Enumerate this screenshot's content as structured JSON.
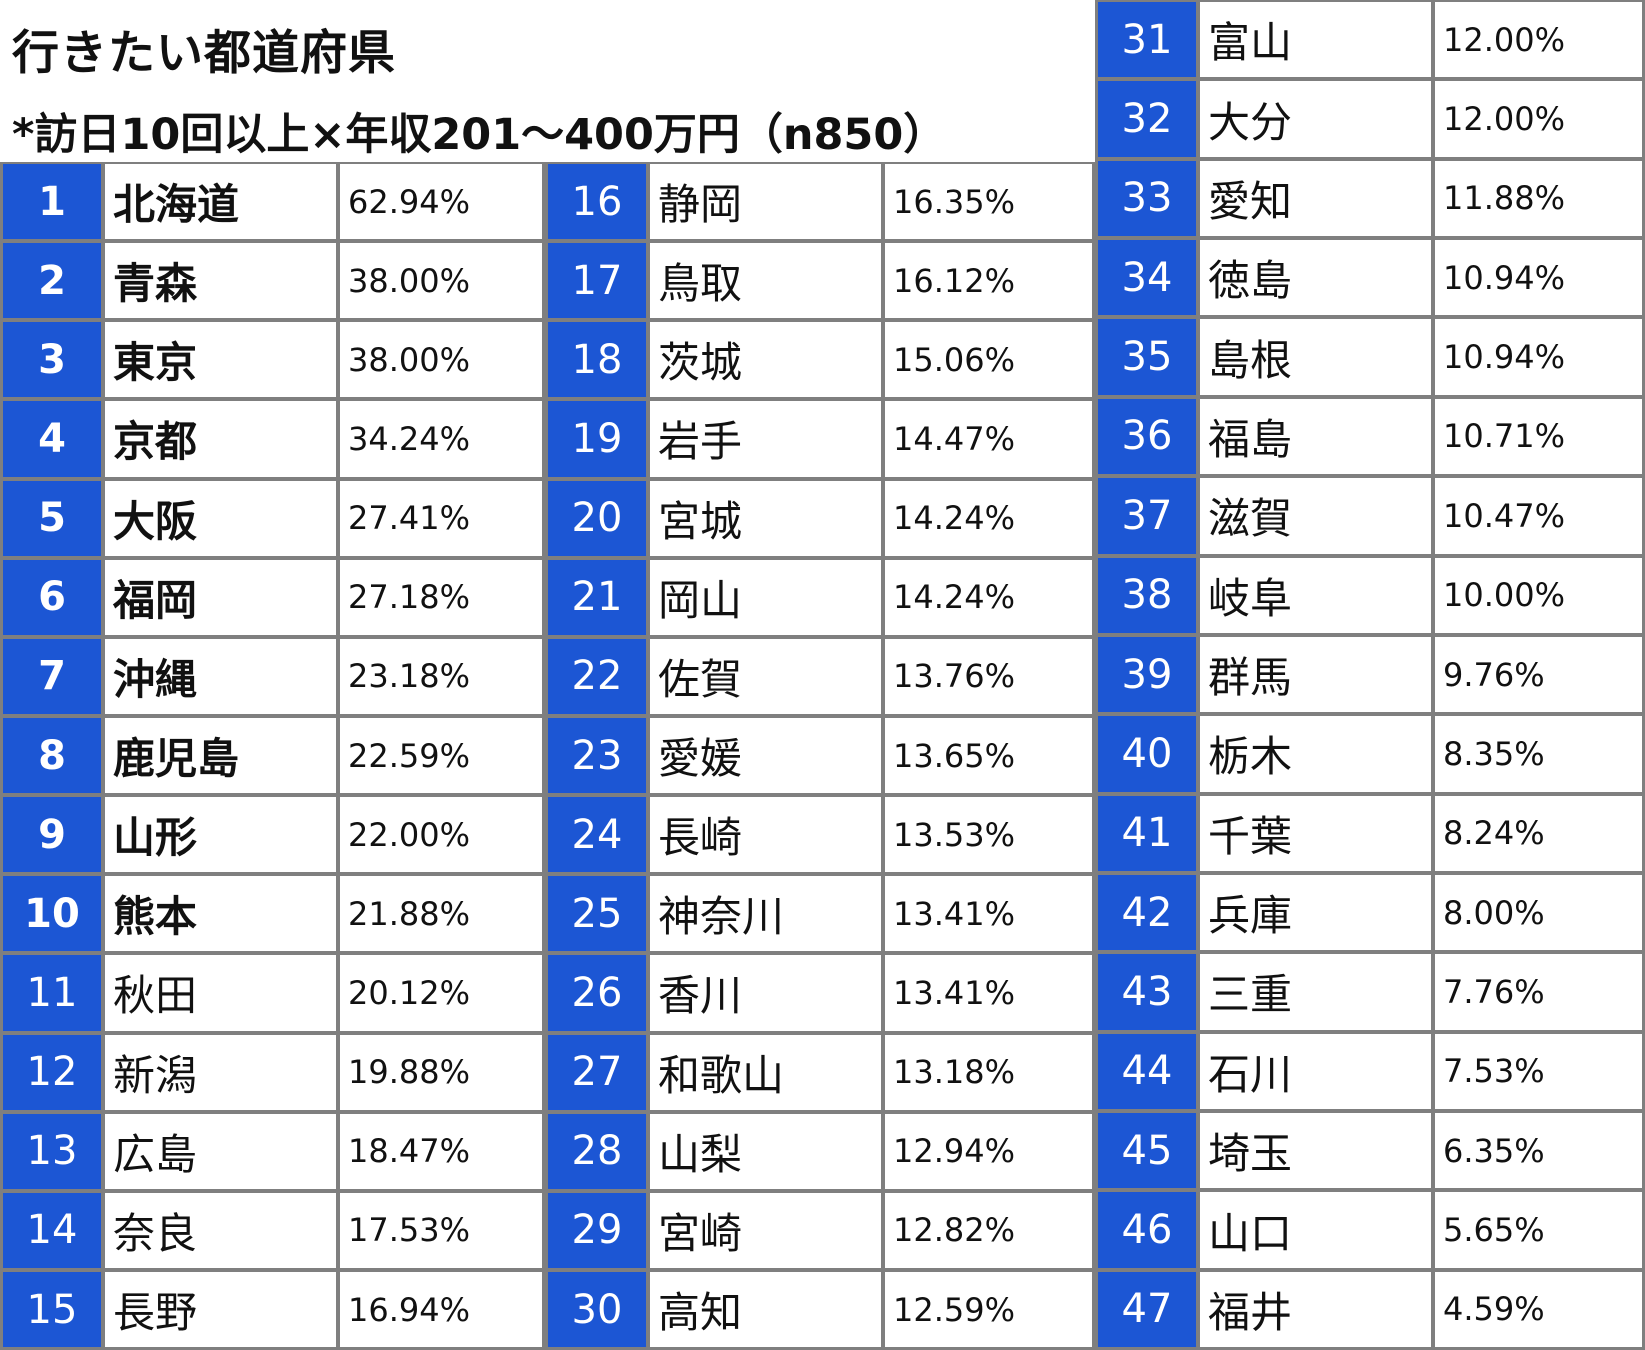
{
  "title": "行きたい都道府県",
  "subtitle": "*訪日10回以上×年収201～400万円（n850）",
  "columns": [
    [
      {
        "rank": "1",
        "name": "北海道",
        "pct": "62.94%",
        "bold": true
      },
      {
        "rank": "2",
        "name": "青森",
        "pct": "38.00%",
        "bold": true
      },
      {
        "rank": "3",
        "name": "東京",
        "pct": "38.00%",
        "bold": true
      },
      {
        "rank": "4",
        "name": "京都",
        "pct": "34.24%",
        "bold": true
      },
      {
        "rank": "5",
        "name": "大阪",
        "pct": "27.41%",
        "bold": true
      },
      {
        "rank": "6",
        "name": "福岡",
        "pct": "27.18%",
        "bold": true
      },
      {
        "rank": "7",
        "name": "沖縄",
        "pct": "23.18%",
        "bold": true
      },
      {
        "rank": "8",
        "name": "鹿児島",
        "pct": "22.59%",
        "bold": true
      },
      {
        "rank": "9",
        "name": "山形",
        "pct": "22.00%",
        "bold": true
      },
      {
        "rank": "10",
        "name": "熊本",
        "pct": "21.88%",
        "bold": true
      },
      {
        "rank": "11",
        "name": "秋田",
        "pct": "20.12%",
        "bold": false
      },
      {
        "rank": "12",
        "name": "新潟",
        "pct": "19.88%",
        "bold": false
      },
      {
        "rank": "13",
        "name": "広島",
        "pct": "18.47%",
        "bold": false
      },
      {
        "rank": "14",
        "name": "奈良",
        "pct": "17.53%",
        "bold": false
      },
      {
        "rank": "15",
        "name": "長野",
        "pct": "16.94%",
        "bold": false
      }
    ],
    [
      {
        "rank": "16",
        "name": "静岡",
        "pct": "16.35%",
        "bold": false
      },
      {
        "rank": "17",
        "name": "鳥取",
        "pct": "16.12%",
        "bold": false
      },
      {
        "rank": "18",
        "name": "茨城",
        "pct": "15.06%",
        "bold": false
      },
      {
        "rank": "19",
        "name": "岩手",
        "pct": "14.47%",
        "bold": false
      },
      {
        "rank": "20",
        "name": "宮城",
        "pct": "14.24%",
        "bold": false
      },
      {
        "rank": "21",
        "name": "岡山",
        "pct": "14.24%",
        "bold": false
      },
      {
        "rank": "22",
        "name": "佐賀",
        "pct": "13.76%",
        "bold": false
      },
      {
        "rank": "23",
        "name": "愛媛",
        "pct": "13.65%",
        "bold": false
      },
      {
        "rank": "24",
        "name": "長崎",
        "pct": "13.53%",
        "bold": false
      },
      {
        "rank": "25",
        "name": "神奈川",
        "pct": "13.41%",
        "bold": false
      },
      {
        "rank": "26",
        "name": "香川",
        "pct": "13.41%",
        "bold": false
      },
      {
        "rank": "27",
        "name": "和歌山",
        "pct": "13.18%",
        "bold": false
      },
      {
        "rank": "28",
        "name": "山梨",
        "pct": "12.94%",
        "bold": false
      },
      {
        "rank": "29",
        "name": "宮崎",
        "pct": "12.82%",
        "bold": false
      },
      {
        "rank": "30",
        "name": "高知",
        "pct": "12.59%",
        "bold": false
      }
    ],
    [
      {
        "rank": "31",
        "name": "富山",
        "pct": "12.00%",
        "bold": false
      },
      {
        "rank": "32",
        "name": "大分",
        "pct": "12.00%",
        "bold": false
      },
      {
        "rank": "33",
        "name": "愛知",
        "pct": "11.88%",
        "bold": false
      },
      {
        "rank": "34",
        "name": "徳島",
        "pct": "10.94%",
        "bold": false
      },
      {
        "rank": "35",
        "name": "島根",
        "pct": "10.94%",
        "bold": false
      },
      {
        "rank": "36",
        "name": "福島",
        "pct": "10.71%",
        "bold": false
      },
      {
        "rank": "37",
        "name": "滋賀",
        "pct": "10.47%",
        "bold": false
      },
      {
        "rank": "38",
        "name": "岐阜",
        "pct": "10.00%",
        "bold": false
      },
      {
        "rank": "39",
        "name": "群馬",
        "pct": "9.76%",
        "bold": false
      },
      {
        "rank": "40",
        "name": "栃木",
        "pct": "8.35%",
        "bold": false
      },
      {
        "rank": "41",
        "name": "千葉",
        "pct": "8.24%",
        "bold": false
      },
      {
        "rank": "42",
        "name": "兵庫",
        "pct": "8.00%",
        "bold": false
      },
      {
        "rank": "43",
        "name": "三重",
        "pct": "7.76%",
        "bold": false
      },
      {
        "rank": "44",
        "name": "石川",
        "pct": "7.53%",
        "bold": false
      },
      {
        "rank": "45",
        "name": "埼玉",
        "pct": "6.35%",
        "bold": false
      },
      {
        "rank": "46",
        "name": "山口",
        "pct": "5.65%",
        "bold": false
      },
      {
        "rank": "47",
        "name": "福井",
        "pct": "4.59%",
        "bold": false
      }
    ]
  ],
  "colors": {
    "rank_bg": "#1c56d4",
    "grid": "#7f7f7f"
  }
}
